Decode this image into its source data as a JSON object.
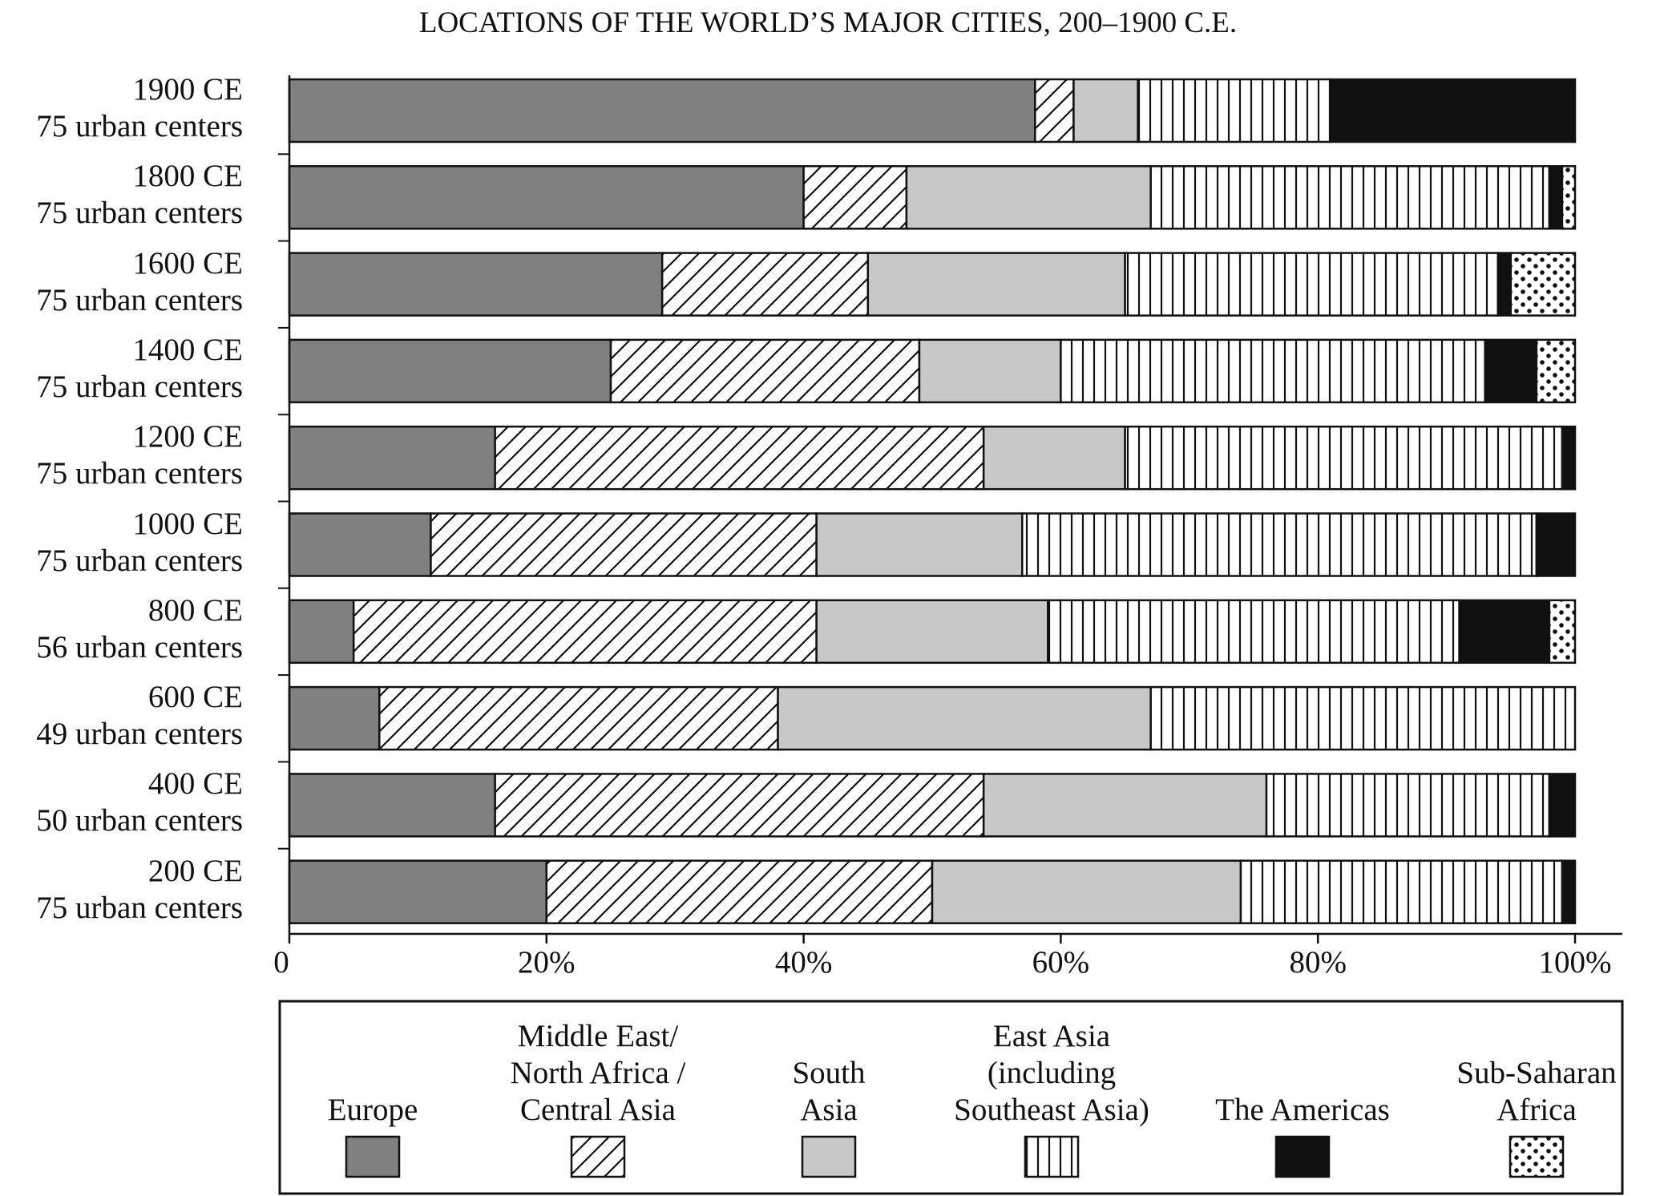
{
  "chart_data": {
    "type": "stacked-bar-horizontal",
    "title": "LOCATIONS OF THE WORLD’S MAJOR CITIES, 200–1900 C.E.",
    "categories": [
      "1900 CE\n75 urban centers",
      "1800 CE\n75 urban centers",
      "1600 CE\n75 urban centers",
      "1400 CE\n75 urban centers",
      "1200 CE\n75 urban centers",
      "1000 CE\n75 urban centers",
      "800 CE\n56 urban centers",
      "600 CE\n49 urban centers",
      "400 CE\n50 urban centers",
      "200 CE\n75 urban centers"
    ],
    "series": [
      {
        "name": "Europe",
        "color": "#808080",
        "pattern": "solid",
        "values": [
          58,
          40,
          29,
          25,
          16,
          11,
          5,
          7,
          16,
          20
        ]
      },
      {
        "name": "Middle East/\nNorth Africa /\nCentral Asia",
        "color": "#ffffff",
        "pattern": "diagonal",
        "values": [
          3,
          8,
          16,
          24,
          38,
          30,
          36,
          31,
          38,
          30
        ]
      },
      {
        "name": "South\nAsia",
        "color": "#c8c8c8",
        "pattern": "solid",
        "values": [
          5,
          19,
          20,
          11,
          11,
          16,
          18,
          29,
          22,
          24
        ]
      },
      {
        "name": "East Asia\n(including\nSoutheast Asia)",
        "color": "#ffffff",
        "pattern": "vertical",
        "values": [
          15,
          31,
          29,
          33,
          34,
          40,
          32,
          33,
          22,
          25
        ]
      },
      {
        "name": "The Americas",
        "color": "#111111",
        "pattern": "solid",
        "values": [
          19,
          1,
          1,
          4,
          1,
          3,
          7,
          0,
          2,
          1
        ]
      },
      {
        "name": "Sub-Saharan\nAfrica",
        "color": "#ffffff",
        "pattern": "dots",
        "values": [
          0,
          1,
          5,
          3,
          0,
          0,
          2,
          0,
          0,
          0
        ]
      }
    ],
    "xlim": [
      0,
      100
    ],
    "xticks": [
      0,
      {
        "value": 20,
        "label": "20%"
      },
      {
        "value": 40,
        "label": "40%"
      },
      {
        "value": 60,
        "label": "60%"
      },
      {
        "value": 80,
        "label": "80%"
      },
      {
        "value": 100,
        "label": "100%"
      }
    ],
    "legend": "bottom"
  }
}
